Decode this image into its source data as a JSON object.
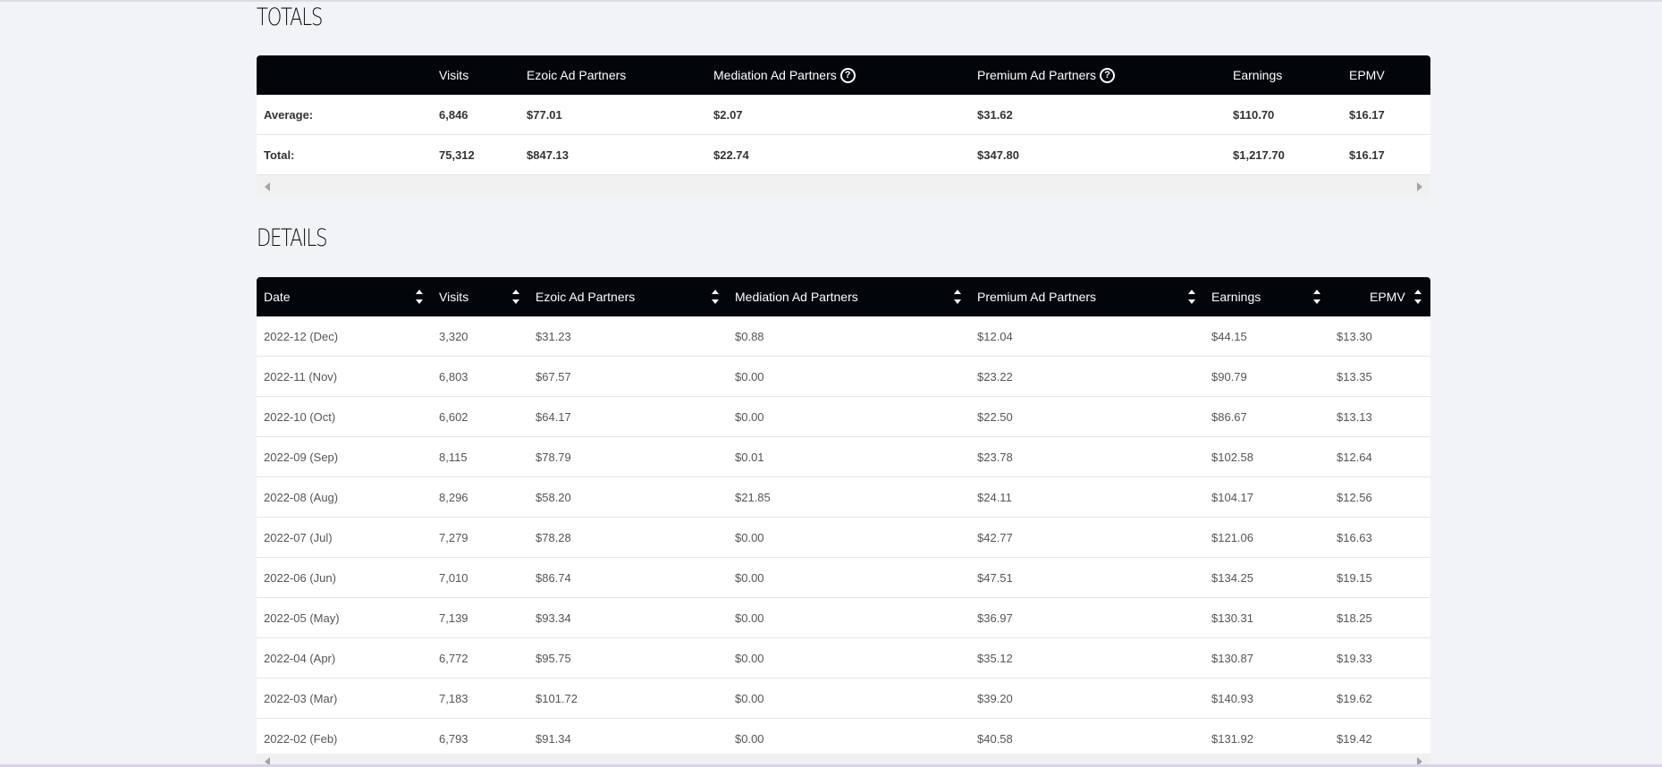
{
  "totals": {
    "title": "TOTALS",
    "headers": [
      "",
      "Visits",
      "Ezoic Ad Partners",
      "Mediation Ad Partners",
      "Premium Ad Partners",
      "Earnings",
      "EPMV"
    ],
    "help_icon_glyph": "?",
    "rows": [
      [
        "Average:",
        "6,846",
        "$77.01",
        "$2.07",
        "$31.62",
        "$110.70",
        "$16.17"
      ],
      [
        "Total:",
        "75,312",
        "$847.13",
        "$22.74",
        "$347.80",
        "$1,217.70",
        "$16.17"
      ]
    ]
  },
  "details": {
    "title": "DETAILS",
    "headers": [
      "Date",
      "Visits",
      "Ezoic Ad Partners",
      "Mediation Ad Partners",
      "Premium Ad Partners",
      "Earnings",
      "EPMV"
    ],
    "rows": [
      [
        "2022-12 (Dec)",
        "3,320",
        "$31.23",
        "$0.88",
        "$12.04",
        "$44.15",
        "$13.30"
      ],
      [
        "2022-11 (Nov)",
        "6,803",
        "$67.57",
        "$0.00",
        "$23.22",
        "$90.79",
        "$13.35"
      ],
      [
        "2022-10 (Oct)",
        "6,602",
        "$64.17",
        "$0.00",
        "$22.50",
        "$86.67",
        "$13.13"
      ],
      [
        "2022-09 (Sep)",
        "8,115",
        "$78.79",
        "$0.01",
        "$23.78",
        "$102.58",
        "$12.64"
      ],
      [
        "2022-08 (Aug)",
        "8,296",
        "$58.20",
        "$21.85",
        "$24.11",
        "$104.17",
        "$12.56"
      ],
      [
        "2022-07 (Jul)",
        "7,279",
        "$78.28",
        "$0.00",
        "$42.77",
        "$121.06",
        "$16.63"
      ],
      [
        "2022-06 (Jun)",
        "7,010",
        "$86.74",
        "$0.00",
        "$47.51",
        "$134.25",
        "$19.15"
      ],
      [
        "2022-05 (May)",
        "7,139",
        "$93.34",
        "$0.00",
        "$36.97",
        "$130.31",
        "$18.25"
      ],
      [
        "2022-04 (Apr)",
        "6,772",
        "$95.75",
        "$0.00",
        "$35.12",
        "$130.87",
        "$19.33"
      ],
      [
        "2022-03 (Mar)",
        "7,183",
        "$101.72",
        "$0.00",
        "$39.20",
        "$140.93",
        "$19.62"
      ],
      [
        "2022-02 (Feb)",
        "6,793",
        "$91.34",
        "$0.00",
        "$40.58",
        "$131.92",
        "$19.42"
      ]
    ]
  }
}
